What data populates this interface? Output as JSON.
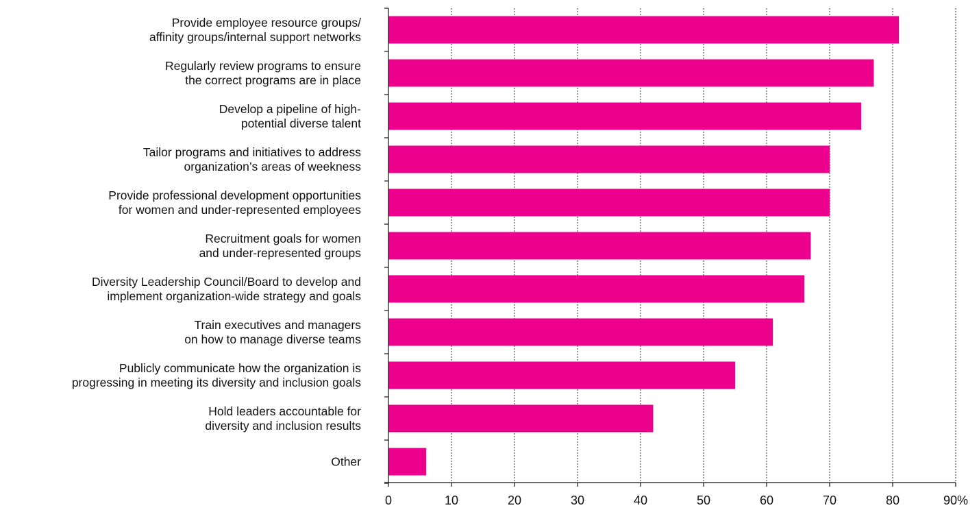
{
  "chart_data": {
    "type": "bar",
    "orientation": "horizontal",
    "categories": [
      [
        "Provide employee resource groups/",
        "affinity groups/internal support networks"
      ],
      [
        "Regularly review programs to ensure",
        "the correct programs are in place"
      ],
      [
        "Develop a pipeline of high-",
        "potential diverse talent"
      ],
      [
        "Tailor programs and initiatives to address",
        "organization’s areas of weekness"
      ],
      [
        "Provide professional development opportunities",
        "for women and under-represented employees"
      ],
      [
        "Recruitment goals for women",
        "and under-represented groups"
      ],
      [
        "Diversity Leadership Council/Board to develop and",
        "implement organization-wide strategy and goals"
      ],
      [
        "Train executives and managers",
        "on how to manage diverse teams"
      ],
      [
        "Publicly communicate how the organization is",
        "progressing in meeting its diversity and inclusion goals"
      ],
      [
        "Hold leaders accountable for",
        "diversity and inclusion results"
      ],
      [
        "Other"
      ]
    ],
    "values": [
      81,
      77,
      75,
      70,
      70,
      67,
      66,
      61,
      55,
      42,
      6
    ],
    "xlim": [
      0,
      90
    ],
    "xticks": [
      "0",
      "10",
      "20",
      "30",
      "40",
      "50",
      "60",
      "70",
      "80",
      "90%"
    ],
    "grid": "vertical dashed",
    "bar_color": "#ec008c",
    "title": "",
    "xlabel": "",
    "ylabel": ""
  }
}
